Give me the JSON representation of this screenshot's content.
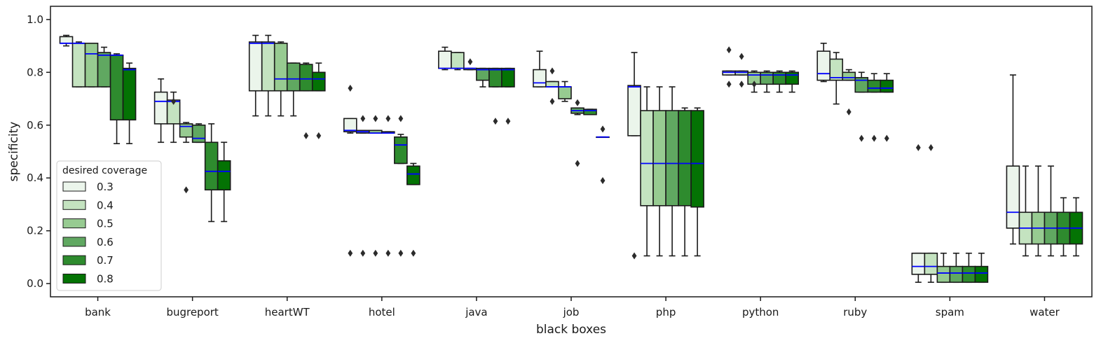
{
  "chart_data": {
    "type": "box",
    "xlabel": "black boxes",
    "ylabel": "specificity",
    "ylim": [
      -0.05,
      1.05
    ],
    "yticks": [
      0.0,
      0.2,
      0.4,
      0.6,
      0.8,
      1.0
    ],
    "ytick_labels": [
      "0.0",
      "0.2",
      "0.4",
      "0.6",
      "0.8",
      "1.0"
    ],
    "categories": [
      "bank",
      "bugreport",
      "heartWT",
      "hotel",
      "java",
      "job",
      "php",
      "python",
      "ruby",
      "spam",
      "water"
    ],
    "legend": {
      "title": "desired coverage",
      "placement": "lower-left"
    },
    "median_color": "#0000ff",
    "series": [
      {
        "name": "0.3",
        "color": "#ebf5eb",
        "boxes": [
          {
            "whislo": 0.9,
            "q1": 0.91,
            "med": 0.91,
            "q3": 0.935,
            "whishi": 0.94,
            "fliers": []
          },
          {
            "whislo": 0.535,
            "q1": 0.605,
            "med": 0.69,
            "q3": 0.725,
            "whishi": 0.775,
            "fliers": []
          },
          {
            "whislo": 0.635,
            "q1": 0.73,
            "med": 0.91,
            "q3": 0.915,
            "whishi": 0.94,
            "fliers": []
          },
          {
            "whislo": 0.57,
            "q1": 0.575,
            "med": 0.58,
            "q3": 0.625,
            "whishi": 0.625,
            "fliers": [
              0.74,
              0.115
            ]
          },
          {
            "whislo": 0.81,
            "q1": 0.815,
            "med": 0.815,
            "q3": 0.88,
            "whishi": 0.895,
            "fliers": []
          },
          {
            "whislo": 0.745,
            "q1": 0.745,
            "med": 0.76,
            "q3": 0.81,
            "whishi": 0.88,
            "fliers": []
          },
          {
            "whislo": 0.56,
            "q1": 0.56,
            "med": 0.745,
            "q3": 0.75,
            "whishi": 0.875,
            "fliers": [
              0.105
            ]
          },
          {
            "whislo": 0.79,
            "q1": 0.79,
            "med": 0.8,
            "q3": 0.805,
            "whishi": 0.805,
            "fliers": [
              0.885,
              0.755
            ]
          },
          {
            "whislo": 0.765,
            "q1": 0.77,
            "med": 0.795,
            "q3": 0.88,
            "whishi": 0.91,
            "fliers": []
          },
          {
            "whislo": 0.005,
            "q1": 0.035,
            "med": 0.065,
            "q3": 0.115,
            "whishi": 0.115,
            "fliers": [
              0.515
            ]
          },
          {
            "whislo": 0.15,
            "q1": 0.21,
            "med": 0.27,
            "q3": 0.445,
            "whishi": 0.79,
            "fliers": []
          }
        ]
      },
      {
        "name": "0.4",
        "color": "#c4e3c0",
        "boxes": [
          {
            "whislo": 0.745,
            "q1": 0.745,
            "med": 0.91,
            "q3": 0.91,
            "whishi": 0.915,
            "fliers": []
          },
          {
            "whislo": 0.535,
            "q1": 0.605,
            "med": 0.69,
            "q3": 0.695,
            "whishi": 0.725,
            "fliers": [
              0.69
            ]
          },
          {
            "whislo": 0.635,
            "q1": 0.73,
            "med": 0.91,
            "q3": 0.915,
            "whishi": 0.94,
            "fliers": []
          },
          {
            "whislo": 0.57,
            "q1": 0.57,
            "med": 0.575,
            "q3": 0.58,
            "whishi": 0.58,
            "fliers": [
              0.625,
              0.115
            ]
          },
          {
            "whislo": 0.81,
            "q1": 0.815,
            "med": 0.815,
            "q3": 0.875,
            "whishi": 0.875,
            "fliers": []
          },
          {
            "whislo": 0.745,
            "q1": 0.745,
            "med": 0.745,
            "q3": 0.765,
            "whishi": 0.765,
            "fliers": [
              0.805,
              0.69
            ]
          },
          {
            "whislo": 0.105,
            "q1": 0.295,
            "med": 0.455,
            "q3": 0.655,
            "whishi": 0.745,
            "fliers": []
          },
          {
            "whislo": 0.79,
            "q1": 0.79,
            "med": 0.8,
            "q3": 0.805,
            "whishi": 0.805,
            "fliers": [
              0.86,
              0.755
            ]
          },
          {
            "whislo": 0.68,
            "q1": 0.77,
            "med": 0.78,
            "q3": 0.85,
            "whishi": 0.875,
            "fliers": []
          },
          {
            "whislo": 0.005,
            "q1": 0.035,
            "med": 0.065,
            "q3": 0.115,
            "whishi": 0.115,
            "fliers": [
              0.515
            ]
          },
          {
            "whislo": 0.105,
            "q1": 0.15,
            "med": 0.21,
            "q3": 0.27,
            "whishi": 0.445,
            "fliers": []
          }
        ]
      },
      {
        "name": "0.5",
        "color": "#97cb91",
        "boxes": [
          {
            "whislo": 0.745,
            "q1": 0.745,
            "med": 0.87,
            "q3": 0.91,
            "whishi": 0.91,
            "fliers": []
          },
          {
            "whislo": 0.535,
            "q1": 0.555,
            "med": 0.595,
            "q3": 0.605,
            "whishi": 0.61,
            "fliers": [
              0.355
            ]
          },
          {
            "whislo": 0.635,
            "q1": 0.73,
            "med": 0.775,
            "q3": 0.91,
            "whishi": 0.915,
            "fliers": []
          },
          {
            "whislo": 0.57,
            "q1": 0.57,
            "med": 0.57,
            "q3": 0.58,
            "whishi": 0.58,
            "fliers": [
              0.625,
              0.115
            ]
          },
          {
            "whislo": 0.81,
            "q1": 0.81,
            "med": 0.815,
            "q3": 0.815,
            "whishi": 0.815,
            "fliers": [
              0.84
            ]
          },
          {
            "whislo": 0.69,
            "q1": 0.7,
            "med": 0.745,
            "q3": 0.745,
            "whishi": 0.765,
            "fliers": []
          },
          {
            "whislo": 0.105,
            "q1": 0.295,
            "med": 0.455,
            "q3": 0.655,
            "whishi": 0.745,
            "fliers": []
          },
          {
            "whislo": 0.725,
            "q1": 0.755,
            "med": 0.79,
            "q3": 0.8,
            "whishi": 0.805,
            "fliers": [
              0.755
            ]
          },
          {
            "whislo": 0.77,
            "q1": 0.77,
            "med": 0.78,
            "q3": 0.8,
            "whishi": 0.81,
            "fliers": [
              0.65
            ]
          },
          {
            "whislo": 0.005,
            "q1": 0.005,
            "med": 0.04,
            "q3": 0.065,
            "whishi": 0.115,
            "fliers": []
          },
          {
            "whislo": 0.105,
            "q1": 0.15,
            "med": 0.21,
            "q3": 0.27,
            "whishi": 0.445,
            "fliers": []
          }
        ]
      },
      {
        "name": "0.6",
        "color": "#60a861",
        "boxes": [
          {
            "whislo": 0.745,
            "q1": 0.745,
            "med": 0.865,
            "q3": 0.875,
            "whishi": 0.895,
            "fliers": []
          },
          {
            "whislo": 0.535,
            "q1": 0.535,
            "med": 0.55,
            "q3": 0.6,
            "whishi": 0.605,
            "fliers": []
          },
          {
            "whislo": 0.635,
            "q1": 0.73,
            "med": 0.775,
            "q3": 0.835,
            "whishi": 0.835,
            "fliers": []
          },
          {
            "whislo": 0.57,
            "q1": 0.57,
            "med": 0.57,
            "q3": 0.575,
            "whishi": 0.575,
            "fliers": [
              0.625,
              0.115
            ]
          },
          {
            "whislo": 0.745,
            "q1": 0.77,
            "med": 0.81,
            "q3": 0.815,
            "whishi": 0.815,
            "fliers": []
          },
          {
            "whislo": 0.64,
            "q1": 0.645,
            "med": 0.655,
            "q3": 0.665,
            "whishi": 0.665,
            "fliers": [
              0.685,
              0.455
            ]
          },
          {
            "whislo": 0.105,
            "q1": 0.295,
            "med": 0.455,
            "q3": 0.655,
            "whishi": 0.745,
            "fliers": []
          },
          {
            "whislo": 0.725,
            "q1": 0.755,
            "med": 0.79,
            "q3": 0.8,
            "whishi": 0.805,
            "fliers": []
          },
          {
            "whislo": 0.725,
            "q1": 0.725,
            "med": 0.77,
            "q3": 0.78,
            "whishi": 0.8,
            "fliers": [
              0.55
            ]
          },
          {
            "whislo": 0.005,
            "q1": 0.005,
            "med": 0.04,
            "q3": 0.065,
            "whishi": 0.115,
            "fliers": []
          },
          {
            "whislo": 0.105,
            "q1": 0.15,
            "med": 0.21,
            "q3": 0.27,
            "whishi": 0.445,
            "fliers": []
          }
        ]
      },
      {
        "name": "0.7",
        "color": "#2e8b2e",
        "boxes": [
          {
            "whislo": 0.53,
            "q1": 0.62,
            "med": 0.865,
            "q3": 0.865,
            "whishi": 0.87,
            "fliers": []
          },
          {
            "whislo": 0.235,
            "q1": 0.355,
            "med": 0.425,
            "q3": 0.535,
            "whishi": 0.605,
            "fliers": []
          },
          {
            "whislo": 0.73,
            "q1": 0.73,
            "med": 0.775,
            "q3": 0.83,
            "whishi": 0.835,
            "fliers": [
              0.56
            ]
          },
          {
            "whislo": 0.455,
            "q1": 0.455,
            "med": 0.525,
            "q3": 0.555,
            "whishi": 0.565,
            "fliers": [
              0.625,
              0.115
            ]
          },
          {
            "whislo": 0.745,
            "q1": 0.745,
            "med": 0.81,
            "q3": 0.815,
            "whishi": 0.815,
            "fliers": [
              0.615
            ]
          },
          {
            "whislo": 0.64,
            "q1": 0.64,
            "med": 0.655,
            "q3": 0.66,
            "whishi": 0.66,
            "fliers": []
          },
          {
            "whislo": 0.105,
            "q1": 0.295,
            "med": 0.455,
            "q3": 0.655,
            "whishi": 0.665,
            "fliers": []
          },
          {
            "whislo": 0.725,
            "q1": 0.755,
            "med": 0.79,
            "q3": 0.8,
            "whishi": 0.805,
            "fliers": []
          },
          {
            "whislo": 0.725,
            "q1": 0.725,
            "med": 0.74,
            "q3": 0.77,
            "whishi": 0.795,
            "fliers": [
              0.55
            ]
          },
          {
            "whislo": 0.005,
            "q1": 0.005,
            "med": 0.04,
            "q3": 0.065,
            "whishi": 0.115,
            "fliers": []
          },
          {
            "whislo": 0.105,
            "q1": 0.15,
            "med": 0.21,
            "q3": 0.27,
            "whishi": 0.325,
            "fliers": []
          }
        ]
      },
      {
        "name": "0.8",
        "color": "#047304",
        "boxes": [
          {
            "whislo": 0.53,
            "q1": 0.62,
            "med": 0.81,
            "q3": 0.815,
            "whishi": 0.835,
            "fliers": []
          },
          {
            "whislo": 0.235,
            "q1": 0.355,
            "med": 0.425,
            "q3": 0.465,
            "whishi": 0.535,
            "fliers": []
          },
          {
            "whislo": 0.73,
            "q1": 0.73,
            "med": 0.775,
            "q3": 0.8,
            "whishi": 0.835,
            "fliers": [
              0.56
            ]
          },
          {
            "whislo": 0.375,
            "q1": 0.375,
            "med": 0.415,
            "q3": 0.445,
            "whishi": 0.455,
            "fliers": [
              0.115
            ]
          },
          {
            "whislo": 0.745,
            "q1": 0.745,
            "med": 0.81,
            "q3": 0.815,
            "whishi": 0.815,
            "fliers": [
              0.615
            ]
          },
          {
            "whislo": 0.555,
            "q1": 0.555,
            "med": 0.555,
            "q3": 0.555,
            "whishi": 0.555,
            "fliers": [
              0.585,
              0.39
            ]
          },
          {
            "whislo": 0.105,
            "q1": 0.29,
            "med": 0.455,
            "q3": 0.655,
            "whishi": 0.665,
            "fliers": []
          },
          {
            "whislo": 0.725,
            "q1": 0.755,
            "med": 0.79,
            "q3": 0.8,
            "whishi": 0.805,
            "fliers": []
          },
          {
            "whislo": 0.725,
            "q1": 0.725,
            "med": 0.74,
            "q3": 0.77,
            "whishi": 0.795,
            "fliers": [
              0.55
            ]
          },
          {
            "whislo": 0.005,
            "q1": 0.005,
            "med": 0.04,
            "q3": 0.065,
            "whishi": 0.115,
            "fliers": []
          },
          {
            "whislo": 0.105,
            "q1": 0.15,
            "med": 0.21,
            "q3": 0.27,
            "whishi": 0.325,
            "fliers": []
          }
        ]
      }
    ]
  }
}
